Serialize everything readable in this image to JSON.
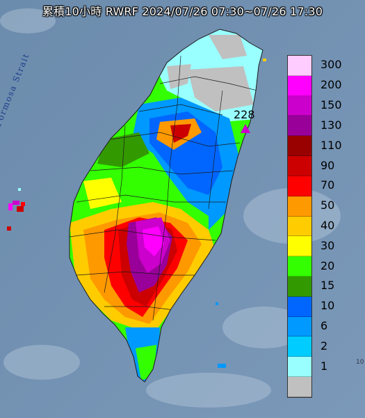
{
  "title": "累積10小時 RWRF 2024/07/26 07:30~07/26 17:30",
  "strait_label": "Formosa Strait",
  "max_marker": {
    "value_label": "228",
    "color": "#cc00cc"
  },
  "legend": {
    "unit_levels": [
      {
        "label": "300",
        "color": "#ffccff"
      },
      {
        "label": "200",
        "color": "#ff00ff"
      },
      {
        "label": "150",
        "color": "#cc00cc"
      },
      {
        "label": "130",
        "color": "#990099"
      },
      {
        "label": "110",
        "color": "#990000"
      },
      {
        "label": "90",
        "color": "#cc0000"
      },
      {
        "label": "70",
        "color": "#ff0000"
      },
      {
        "label": "50",
        "color": "#ff9900"
      },
      {
        "label": "40",
        "color": "#ffcc00"
      },
      {
        "label": "30",
        "color": "#ffff00"
      },
      {
        "label": "20",
        "color": "#33ff00"
      },
      {
        "label": "15",
        "color": "#339900"
      },
      {
        "label": "10",
        "color": "#0066ff"
      },
      {
        "label": "6",
        "color": "#0099ff"
      },
      {
        "label": "2",
        "color": "#00ccff"
      },
      {
        "label": "1",
        "color": "#99ffff"
      },
      {
        "label": "",
        "color": "#c0c0c0"
      }
    ]
  },
  "corner_text": "10"
}
